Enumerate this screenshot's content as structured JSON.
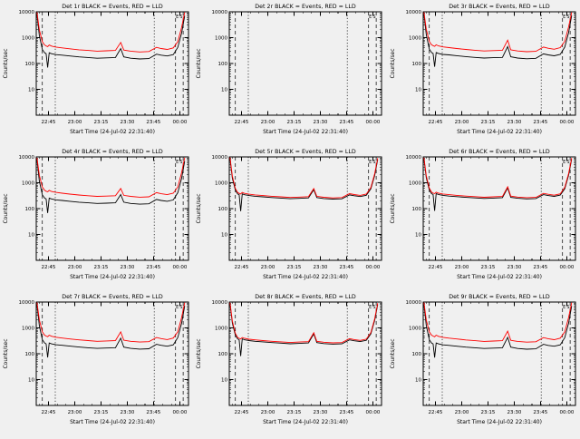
{
  "page": {
    "background": "#f0f0f0",
    "axis_color": "#000000",
    "series_colors": {
      "events": "#000000",
      "lld": "#ff0000"
    }
  },
  "chart_common": {
    "xlabel": "Start Time (24-Jul-02 22:31:40)",
    "ylabel": "Counts/sec",
    "ylog": true,
    "ylim": [
      1,
      10000
    ],
    "yticks": [
      10000,
      1000,
      100,
      10
    ],
    "xticks": [
      {
        "label": "22:45",
        "f": 0.08
      },
      {
        "label": "23:00",
        "f": 0.253
      },
      {
        "label": "23:15",
        "f": 0.425
      },
      {
        "label": "23:30",
        "f": 0.598
      },
      {
        "label": "23:45",
        "f": 0.77
      },
      {
        "label": "00:00",
        "f": 0.943
      }
    ],
    "ref_lines": [
      {
        "f": 0.04,
        "style": "dashed"
      },
      {
        "f": 0.125,
        "style": "dotted"
      },
      {
        "f": 0.775,
        "style": "dotted"
      },
      {
        "f": 0.915,
        "style": "dashed"
      },
      {
        "f": 0.965,
        "style": "dashed"
      }
    ],
    "annotations": [
      {
        "f": 0.927,
        "label": "E"
      },
      {
        "f": 0.952,
        "label": "S"
      }
    ],
    "x": [
      0.005,
      0.02,
      0.04,
      0.055,
      0.065,
      0.075,
      0.085,
      0.1,
      0.13,
      0.17,
      0.22,
      0.28,
      0.34,
      0.4,
      0.46,
      0.52,
      0.555,
      0.575,
      0.62,
      0.68,
      0.74,
      0.79,
      0.82,
      0.86,
      0.9,
      0.93,
      0.955,
      0.975
    ]
  },
  "chart_data": [
    {
      "type": "line",
      "title": "Det 1r BLACK = Events, RED = LLD",
      "series": [
        {
          "name": "Events",
          "color": "#000000",
          "y": [
            8000,
            1200,
            350,
            260,
            240,
            70,
            260,
            240,
            220,
            210,
            195,
            180,
            170,
            160,
            165,
            170,
            380,
            180,
            160,
            150,
            155,
            230,
            210,
            195,
            220,
            420,
            1500,
            7000
          ]
        },
        {
          "name": "LLD",
          "color": "#ff0000",
          "y": [
            9500,
            2000,
            700,
            520,
            480,
            450,
            520,
            470,
            430,
            400,
            370,
            340,
            320,
            300,
            310,
            320,
            650,
            330,
            300,
            280,
            290,
            420,
            380,
            350,
            400,
            700,
            2500,
            9500
          ]
        }
      ]
    },
    {
      "type": "line",
      "title": "Det 2r BLACK = Events, RED = LLD",
      "series": []
    },
    {
      "type": "line",
      "title": "Det 3r BLACK = Events, RED = LLD",
      "series": [
        {
          "name": "Events",
          "color": "#000000",
          "y": [
            8200,
            1300,
            360,
            265,
            245,
            75,
            265,
            245,
            225,
            215,
            200,
            185,
            172,
            162,
            168,
            172,
            450,
            182,
            162,
            152,
            158,
            235,
            215,
            198,
            225,
            430,
            1550,
            7200
          ]
        },
        {
          "name": "LLD",
          "color": "#ff0000",
          "y": [
            9500,
            2100,
            720,
            530,
            490,
            460,
            530,
            480,
            440,
            410,
            380,
            350,
            325,
            305,
            315,
            325,
            800,
            335,
            305,
            285,
            295,
            430,
            390,
            355,
            410,
            720,
            2600,
            9500
          ]
        }
      ]
    },
    {
      "type": "line",
      "title": "Det 4r BLACK = Events, RED = LLD",
      "series": [
        {
          "name": "Events",
          "color": "#000000",
          "y": [
            7900,
            1180,
            345,
            256,
            237,
            68,
            256,
            237,
            217,
            207,
            192,
            178,
            168,
            158,
            163,
            168,
            350,
            178,
            158,
            148,
            153,
            227,
            207,
            192,
            217,
            415,
            1480,
            6900
          ]
        },
        {
          "name": "LLD",
          "color": "#ff0000",
          "y": [
            9300,
            1950,
            690,
            510,
            470,
            445,
            510,
            462,
            425,
            395,
            365,
            336,
            316,
            297,
            306,
            316,
            600,
            326,
            297,
            277,
            287,
            415,
            375,
            346,
            395,
            690,
            2450,
            9400
          ]
        }
      ]
    },
    {
      "type": "line",
      "title": "Det 5r BLACK = Events, RED = LLD",
      "series": [
        {
          "name": "Events",
          "color": "#000000",
          "y": [
            8500,
            1500,
            520,
            370,
            345,
            80,
            370,
            345,
            320,
            300,
            285,
            268,
            255,
            242,
            250,
            260,
            540,
            268,
            246,
            233,
            240,
            340,
            314,
            292,
            328,
            580,
            1900,
            8000
          ]
        },
        {
          "name": "LLD",
          "color": "#ff0000",
          "y": [
            9500,
            1800,
            600,
            420,
            390,
            370,
            420,
            390,
            360,
            340,
            320,
            300,
            285,
            270,
            280,
            290,
            600,
            300,
            275,
            260,
            268,
            380,
            350,
            325,
            365,
            650,
            2200,
            9000
          ]
        }
      ]
    },
    {
      "type": "line",
      "title": "Det 6r BLACK = Events, RED = LLD",
      "series": [
        {
          "name": "Events",
          "color": "#000000",
          "y": [
            8400,
            1540,
            535,
            380,
            352,
            82,
            380,
            352,
            326,
            306,
            290,
            273,
            260,
            247,
            255,
            265,
            630,
            273,
            251,
            238,
            245,
            347,
            320,
            298,
            334,
            592,
            1940,
            8100
          ]
        },
        {
          "name": "LLD",
          "color": "#ff0000",
          "y": [
            9400,
            1850,
            620,
            430,
            398,
            378,
            430,
            398,
            368,
            347,
            326,
            306,
            290,
            275,
            285,
            296,
            700,
            306,
            280,
            265,
            273,
            388,
            357,
            331,
            372,
            665,
            2250,
            9100
          ]
        }
      ]
    },
    {
      "type": "line",
      "title": "Det 7r BLACK = Events, RED = LLD",
      "series": [
        {
          "name": "Events",
          "color": "#000000",
          "y": [
            8100,
            1220,
            352,
            262,
            242,
            72,
            262,
            242,
            222,
            212,
            197,
            182,
            171,
            161,
            166,
            171,
            400,
            181,
            161,
            151,
            156,
            232,
            212,
            196,
            221,
            424,
            1510,
            7100
          ]
        },
        {
          "name": "LLD",
          "color": "#ff0000",
          "y": [
            9600,
            2050,
            710,
            525,
            485,
            455,
            525,
            475,
            435,
            405,
            374,
            344,
            323,
            303,
            313,
            323,
            700,
            333,
            303,
            283,
            293,
            424,
            384,
            354,
            404,
            707,
            2520,
            9550
          ]
        }
      ]
    },
    {
      "type": "line",
      "title": "Det 8r BLACK = Events, RED = LLD",
      "series": [
        {
          "name": "Events",
          "color": "#000000",
          "y": [
            8450,
            1520,
            528,
            375,
            348,
            81,
            375,
            348,
            323,
            303,
            288,
            270,
            257,
            244,
            252,
            262,
            585,
            270,
            248,
            235,
            242,
            343,
            317,
            295,
            331,
            586,
            1920,
            8050
          ]
        },
        {
          "name": "LLD",
          "color": "#ff0000",
          "y": [
            9450,
            1820,
            610,
            425,
            394,
            374,
            425,
            394,
            364,
            343,
            323,
            303,
            288,
            273,
            283,
            293,
            650,
            303,
            278,
            263,
            271,
            384,
            353,
            328,
            368,
            657,
            2220,
            9050
          ]
        }
      ]
    },
    {
      "type": "line",
      "title": "Det 9r BLACK = Events, RED = LLD",
      "series": [
        {
          "name": "Events",
          "color": "#000000",
          "y": [
            8050,
            1210,
            351,
            261,
            241,
            71,
            261,
            241,
            221,
            211,
            196,
            181,
            170,
            160,
            165,
            170,
            430,
            180,
            160,
            150,
            155,
            231,
            211,
            195,
            220,
            422,
            1505,
            7050
          ]
        },
        {
          "name": "LLD",
          "color": "#ff0000",
          "y": [
            9550,
            2020,
            705,
            522,
            482,
            452,
            522,
            472,
            432,
            402,
            372,
            342,
            321,
            301,
            311,
            321,
            750,
            331,
            301,
            281,
            291,
            421,
            381,
            351,
            401,
            703,
            2510,
            9520
          ]
        }
      ]
    }
  ]
}
